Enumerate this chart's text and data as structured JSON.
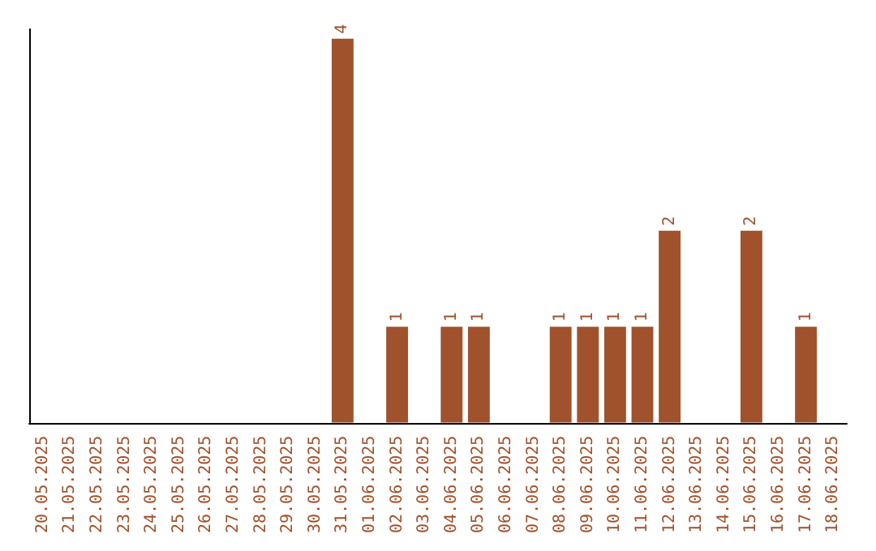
{
  "chart_data": {
    "type": "bar",
    "categories": [
      "20.05.2025",
      "21.05.2025",
      "22.05.2025",
      "23.05.2025",
      "24.05.2025",
      "25.05.2025",
      "26.05.2025",
      "27.05.2025",
      "28.05.2025",
      "29.05.2025",
      "30.05.2025",
      "31.05.2025",
      "01.06.2025",
      "02.06.2025",
      "03.06.2025",
      "04.06.2025",
      "05.06.2025",
      "06.06.2025",
      "07.06.2025",
      "08.06.2025",
      "09.06.2025",
      "10.06.2025",
      "11.06.2025",
      "12.06.2025",
      "13.06.2025",
      "14.06.2025",
      "15.06.2025",
      "16.06.2025",
      "17.06.2025",
      "18.06.2025"
    ],
    "values": [
      0,
      0,
      0,
      0,
      0,
      0,
      0,
      0,
      0,
      0,
      0,
      4,
      0,
      1,
      0,
      1,
      1,
      0,
      0,
      1,
      1,
      1,
      1,
      2,
      0,
      0,
      2,
      0,
      1,
      0
    ],
    "value_labels": [
      null,
      null,
      null,
      null,
      null,
      null,
      null,
      null,
      null,
      null,
      null,
      "4",
      null,
      "1",
      null,
      "1",
      "1",
      null,
      null,
      "1",
      "1",
      "1",
      "1",
      "2",
      null,
      null,
      "2",
      null,
      "1",
      null
    ],
    "color": "#a0522d",
    "ylim": [
      0,
      4.1
    ],
    "tick_labels": "x"
  }
}
